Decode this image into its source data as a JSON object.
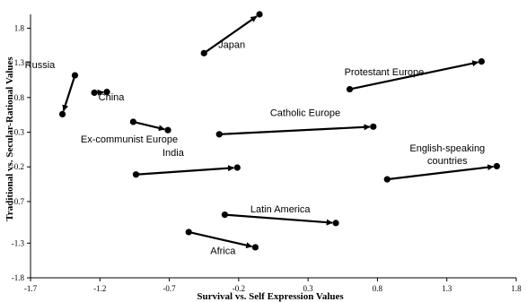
{
  "chart_data": {
    "type": "scatter",
    "title": "",
    "xlabel": "Survival vs. Self Expression Values",
    "ylabel": "Traditional vs. Secular-Rational Values",
    "xlim": [
      -1.7,
      1.8
    ],
    "ylim": [
      -1.8,
      2.0
    ],
    "x_ticks": [
      -1.7,
      -1.2,
      -0.7,
      -0.2,
      0.3,
      0.8,
      1.3,
      1.8
    ],
    "x_tick_labels": [
      "-1.7",
      "-1.2",
      "-0.7",
      "-0.2",
      "0.3",
      "0.8",
      "1.3",
      "1.8"
    ],
    "y_ticks": [
      1.8,
      1.3,
      0.8,
      0.3,
      -0.2,
      -0.7,
      -1.3,
      -1.8
    ],
    "y_tick_labels": [
      "1.8",
      "1.3",
      "0.8",
      "0.3",
      "-0.2",
      "-0.7",
      "-1.3",
      "-1.8"
    ],
    "grid": false,
    "legend": "none",
    "marker_color": "#000000",
    "series": [
      {
        "name": "Japan",
        "points": [
          [
            -0.45,
            1.44
          ],
          [
            -0.05,
            2.0
          ]
        ]
      },
      {
        "name": "Protestant Europe",
        "points": [
          [
            0.6,
            0.92
          ],
          [
            1.55,
            1.32
          ]
        ]
      },
      {
        "name": "Russia",
        "points": [
          [
            -1.38,
            1.12
          ],
          [
            -1.47,
            0.56
          ]
        ]
      },
      {
        "name": "China",
        "points": [
          [
            -1.24,
            0.87
          ],
          [
            -1.15,
            0.88
          ]
        ]
      },
      {
        "name": "Ex-communist Europe",
        "points": [
          [
            -0.96,
            0.45
          ],
          [
            -0.71,
            0.33
          ]
        ]
      },
      {
        "name": "Catholic Europe",
        "points": [
          [
            -0.34,
            0.27
          ],
          [
            0.77,
            0.38
          ]
        ]
      },
      {
        "name": "India",
        "points": [
          [
            -0.94,
            -0.31
          ],
          [
            -0.21,
            -0.21
          ]
        ]
      },
      {
        "name": "English-speaking countries",
        "points": [
          [
            0.87,
            -0.38
          ],
          [
            1.66,
            -0.19
          ]
        ]
      },
      {
        "name": "Latin America",
        "points": [
          [
            -0.3,
            -0.89
          ],
          [
            0.5,
            -1.01
          ]
        ]
      },
      {
        "name": "Africa",
        "points": [
          [
            -0.56,
            -1.14
          ],
          [
            -0.08,
            -1.36
          ]
        ]
      }
    ],
    "annotations": [
      {
        "series": "Japan",
        "text": "Japan"
      },
      {
        "series": "Protestant Europe",
        "text": "Protestant Europe"
      },
      {
        "series": "Russia",
        "text": "Russia"
      },
      {
        "series": "China",
        "text": "China"
      },
      {
        "series": "Ex-communist Europe",
        "text": "Ex-communist Europe"
      },
      {
        "series": "Catholic Europe",
        "text": "Catholic Europe"
      },
      {
        "series": "India",
        "text": "India"
      },
      {
        "series": "English-speaking countries",
        "lines": [
          "English-speaking",
          "countries"
        ]
      },
      {
        "series": "Latin America",
        "text": "Latin America"
      },
      {
        "series": "Africa",
        "text": "Africa"
      }
    ]
  }
}
